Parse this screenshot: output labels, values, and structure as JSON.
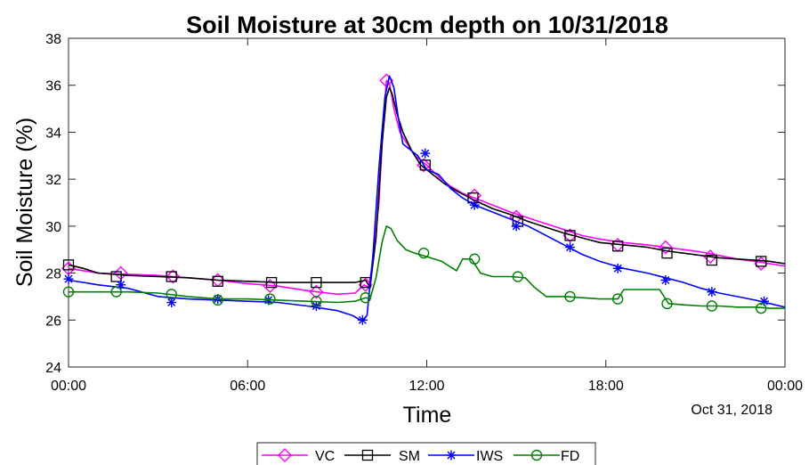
{
  "chart_data": {
    "type": "line",
    "title": "Soil Moisture at 30cm depth on 10/31/2018",
    "xlabel": "Time",
    "ylabel": "Soil Moisture (%)",
    "date_label": "Oct 31, 2018",
    "xlim": [
      0,
      24
    ],
    "ylim": [
      24,
      38
    ],
    "x_ticks": [
      0,
      6,
      12,
      18,
      24
    ],
    "x_tick_labels": [
      "00:00",
      "06:00",
      "12:00",
      "18:00",
      "00:00"
    ],
    "y_ticks": [
      24,
      26,
      28,
      30,
      32,
      34,
      36,
      38
    ],
    "y_tick_labels": [
      "24",
      "26",
      "28",
      "30",
      "32",
      "34",
      "36",
      "38"
    ],
    "legend_position": "bottom-center",
    "series": [
      {
        "name": "VC",
        "color": "#ff00ff",
        "marker": "diamond",
        "x": [
          0,
          0.5,
          1,
          2,
          3,
          4,
          5,
          6,
          7,
          8,
          9,
          9.6,
          9.9,
          10.05,
          10.2,
          10.4,
          10.55,
          10.65,
          10.75,
          10.9,
          11.1,
          11.3,
          11.6,
          12,
          12.4,
          12.8,
          13.2,
          13.6,
          14.2,
          14.8,
          15.4,
          16,
          16.6,
          17.2,
          17.8,
          18.6,
          19.4,
          20,
          20.6,
          21.2,
          21.8,
          22.4,
          23,
          23.5,
          24
        ],
        "y": [
          28.2,
          28.1,
          28.0,
          27.95,
          27.9,
          27.8,
          27.7,
          27.55,
          27.45,
          27.25,
          27.1,
          27.15,
          27.5,
          27.4,
          28.5,
          31.0,
          34.5,
          36.2,
          36.1,
          35.0,
          34.0,
          33.6,
          33.0,
          32.6,
          32.1,
          31.7,
          31.4,
          31.2,
          30.9,
          30.6,
          30.35,
          30.1,
          29.85,
          29.6,
          29.45,
          29.3,
          29.2,
          29.1,
          29.0,
          28.9,
          28.75,
          28.6,
          28.5,
          28.4,
          28.3
        ],
        "marker_x": [
          0,
          1.75,
          3.5,
          5.0,
          6.75,
          8.3,
          9.95,
          10.65,
          11.9,
          13.6,
          15.0,
          16.8,
          18.4,
          20.0,
          21.5,
          23.2
        ],
        "marker_y": [
          28.2,
          28.0,
          27.85,
          27.7,
          27.45,
          27.2,
          27.5,
          36.2,
          32.6,
          31.3,
          30.4,
          29.6,
          29.2,
          29.1,
          28.7,
          28.4
        ]
      },
      {
        "name": "SM",
        "color": "#000000",
        "marker": "square",
        "x": [
          0,
          0.5,
          1,
          2,
          3,
          4,
          5,
          6,
          7,
          8,
          9,
          9.6,
          9.95,
          10.1,
          10.3,
          10.5,
          10.65,
          10.75,
          10.85,
          11.0,
          11.2,
          11.5,
          11.8,
          12.2,
          12.6,
          13.0,
          13.6,
          14.2,
          14.8,
          15.4,
          16,
          16.6,
          17.2,
          17.8,
          18.6,
          19.4,
          20,
          20.6,
          21.2,
          21.8,
          22.4,
          23,
          23.5,
          24
        ],
        "y": [
          28.35,
          28.2,
          28.0,
          27.9,
          27.85,
          27.8,
          27.7,
          27.65,
          27.6,
          27.6,
          27.6,
          27.6,
          27.7,
          27.4,
          29.5,
          33.5,
          35.5,
          35.9,
          35.6,
          34.8,
          34.0,
          33.2,
          32.6,
          32.2,
          31.8,
          31.5,
          31.1,
          30.75,
          30.5,
          30.2,
          29.95,
          29.7,
          29.5,
          29.3,
          29.2,
          29.1,
          28.95,
          28.85,
          28.75,
          28.65,
          28.6,
          28.55,
          28.5,
          28.4
        ],
        "marker_x": [
          0,
          1.6,
          3.45,
          5.0,
          6.8,
          8.3,
          9.95,
          11.95,
          13.55,
          15.05,
          16.8,
          18.4,
          20.05,
          21.55,
          23.2
        ],
        "marker_y": [
          28.35,
          27.85,
          27.85,
          27.65,
          27.6,
          27.6,
          27.6,
          32.6,
          31.2,
          30.2,
          29.6,
          29.15,
          28.85,
          28.55,
          28.5
        ]
      },
      {
        "name": "IWS",
        "color": "#0000ff",
        "marker": "asterisk",
        "x": [
          0,
          0.5,
          1,
          2,
          3,
          4,
          5,
          6,
          7,
          8,
          9,
          9.5,
          9.85,
          10.0,
          10.2,
          10.4,
          10.6,
          10.75,
          10.9,
          11.05,
          11.2,
          11.4,
          11.7,
          12,
          12.4,
          12.8,
          13.2,
          13.6,
          14.2,
          14.8,
          15.4,
          16,
          16.6,
          17.2,
          17.8,
          18.6,
          19.4,
          20,
          20.6,
          21.2,
          21.8,
          22.4,
          23,
          23.5,
          24
        ],
        "y": [
          27.7,
          27.6,
          27.5,
          27.35,
          27.0,
          26.9,
          26.85,
          26.8,
          26.75,
          26.6,
          26.4,
          26.2,
          25.95,
          26.2,
          28.8,
          32.5,
          35.5,
          36.4,
          35.9,
          34.6,
          33.5,
          33.3,
          33.0,
          32.4,
          32.2,
          31.6,
          31.2,
          30.9,
          30.6,
          30.3,
          30.0,
          29.6,
          29.2,
          28.8,
          28.5,
          28.2,
          28.0,
          27.8,
          27.6,
          27.35,
          27.15,
          27.0,
          26.85,
          26.7,
          26.55
        ],
        "marker_x": [
          0,
          1.75,
          3.45,
          5.0,
          6.7,
          8.3,
          9.85,
          11.95,
          13.6,
          15.0,
          16.8,
          18.4,
          20.0,
          21.55,
          23.3
        ],
        "marker_y": [
          27.75,
          27.5,
          26.75,
          26.9,
          26.85,
          26.6,
          26.0,
          33.1,
          30.9,
          30.0,
          29.1,
          28.2,
          27.7,
          27.2,
          26.8
        ]
      },
      {
        "name": "FD",
        "color": "#008000",
        "marker": "circle",
        "x": [
          0,
          0.5,
          1,
          2,
          3,
          4,
          5,
          6,
          7,
          8,
          9,
          9.6,
          9.95,
          10.1,
          10.3,
          10.5,
          10.65,
          10.8,
          11.0,
          11.3,
          11.6,
          12,
          12.5,
          13.0,
          13.2,
          13.5,
          13.8,
          14.2,
          14.8,
          15.3,
          15.6,
          16,
          16.6,
          17.2,
          17.8,
          18.4,
          18.6,
          19.0,
          19.8,
          20.1,
          20.6,
          21.2,
          21.8,
          22.4,
          23,
          23.5,
          24
        ],
        "y": [
          27.2,
          27.2,
          27.2,
          27.2,
          27.15,
          27.0,
          26.9,
          26.9,
          26.85,
          26.8,
          26.75,
          26.8,
          26.95,
          26.9,
          27.8,
          29.3,
          30.0,
          29.9,
          29.4,
          29.0,
          28.85,
          28.7,
          28.5,
          28.1,
          28.6,
          28.6,
          28.0,
          27.85,
          27.85,
          27.8,
          27.4,
          27.0,
          27.0,
          26.95,
          26.9,
          26.9,
          27.3,
          27.3,
          27.3,
          26.7,
          26.65,
          26.6,
          26.6,
          26.55,
          26.55,
          26.5,
          26.5
        ],
        "marker_x": [
          0,
          1.6,
          3.45,
          5.0,
          6.75,
          8.3,
          9.95,
          11.9,
          13.6,
          15.05,
          16.8,
          18.4,
          20.05,
          21.55,
          23.2
        ],
        "marker_y": [
          27.2,
          27.2,
          27.1,
          26.85,
          26.9,
          26.8,
          26.95,
          28.85,
          28.6,
          27.85,
          27.0,
          26.9,
          26.7,
          26.6,
          26.5
        ]
      }
    ]
  }
}
